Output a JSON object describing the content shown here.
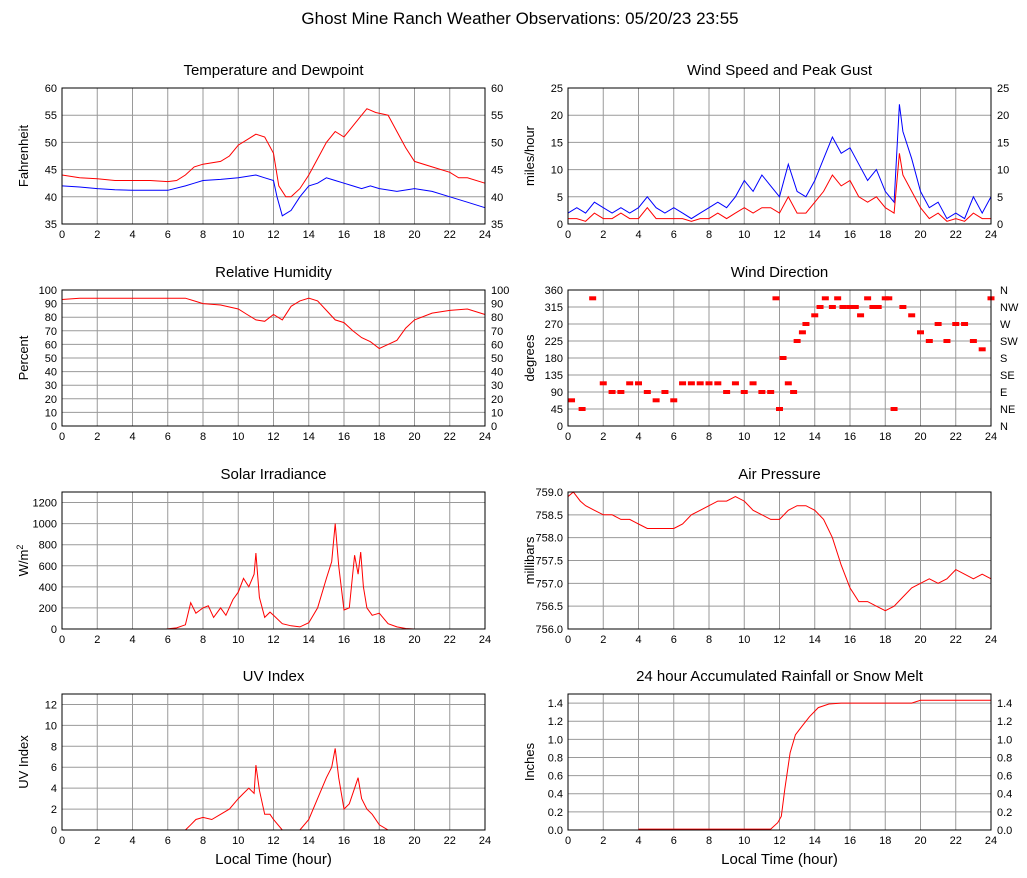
{
  "title": "Ghost Mine Ranch Weather Observations: 05/20/23 23:55",
  "colors": {
    "red": "#ff0000",
    "blue": "#0000ff"
  },
  "chart_data": [
    {
      "type": "line",
      "title": "Temperature and Dewpoint",
      "xlabel": "",
      "ylabel": "Fahrenheit",
      "xlim": [
        0,
        24
      ],
      "ylim": [
        35,
        60
      ],
      "xticks": [
        0,
        2,
        4,
        6,
        8,
        10,
        12,
        14,
        16,
        18,
        20,
        22,
        24
      ],
      "yticks": [
        35,
        40,
        45,
        50,
        55,
        60
      ],
      "right_axis": true,
      "series": [
        {
          "color": "#ff0000",
          "x": [
            0,
            1,
            2,
            3,
            4,
            5,
            6,
            6.5,
            7,
            7.5,
            8,
            9,
            9.5,
            10,
            10.5,
            11,
            11.5,
            12,
            12.3,
            12.7,
            13,
            13.5,
            14,
            14.5,
            15,
            15.5,
            16,
            16.5,
            17,
            17.3,
            17.8,
            18.5,
            19,
            19.5,
            20,
            21,
            22,
            22.5,
            23,
            24
          ],
          "y": [
            44,
            43.5,
            43.3,
            43,
            43,
            43,
            42.8,
            43,
            44,
            45.5,
            46,
            46.5,
            47.5,
            49.5,
            50.5,
            51.5,
            51,
            48,
            42,
            40,
            40,
            41.5,
            44,
            47,
            50,
            52,
            51,
            53,
            55,
            56.2,
            55.5,
            55,
            52,
            49,
            46.5,
            45.5,
            44.5,
            43.5,
            43.5,
            42.5
          ]
        },
        {
          "color": "#0000ff",
          "x": [
            0,
            1,
            2,
            3,
            4,
            5,
            6,
            7,
            7.5,
            8,
            9,
            10,
            11,
            11.5,
            12,
            12.2,
            12.5,
            13,
            13.5,
            14,
            14.5,
            15,
            15.5,
            16,
            16.5,
            17,
            17.5,
            18,
            19,
            20,
            21,
            22,
            23,
            24
          ],
          "y": [
            42,
            41.8,
            41.5,
            41.3,
            41.2,
            41.2,
            41.2,
            42,
            42.5,
            43,
            43.2,
            43.5,
            44,
            43.5,
            43,
            40,
            36.5,
            37.5,
            40,
            42,
            42.5,
            43.5,
            43,
            42.5,
            42,
            41.5,
            42,
            41.5,
            41,
            41.5,
            41,
            40,
            39,
            38
          ]
        }
      ]
    },
    {
      "type": "line",
      "title": "Wind Speed and Peak Gust",
      "xlabel": "",
      "ylabel": "miles/hour",
      "xlim": [
        0,
        24
      ],
      "ylim": [
        0,
        25
      ],
      "xticks": [
        0,
        2,
        4,
        6,
        8,
        10,
        12,
        14,
        16,
        18,
        20,
        22,
        24
      ],
      "yticks": [
        0,
        5,
        10,
        15,
        20,
        25
      ],
      "right_axis": true,
      "series": [
        {
          "color": "#0000ff",
          "x": [
            0,
            0.5,
            1,
            1.5,
            2,
            2.5,
            3,
            3.5,
            4,
            4.5,
            5,
            5.5,
            6,
            6.5,
            7,
            7.5,
            8,
            8.5,
            9,
            9.5,
            10,
            10.5,
            11,
            11.5,
            12,
            12.5,
            13,
            13.5,
            14,
            14.5,
            15,
            15.5,
            16,
            16.5,
            17,
            17.5,
            18,
            18.5,
            18.8,
            19,
            19.5,
            20,
            20.5,
            21,
            21.5,
            22,
            22.5,
            23,
            23.5,
            24
          ],
          "y": [
            2,
            3,
            2,
            4,
            3,
            2,
            3,
            2,
            3,
            5,
            3,
            2,
            3,
            2,
            1,
            2,
            3,
            4,
            3,
            5,
            8,
            6,
            9,
            7,
            5,
            11,
            6,
            5,
            8,
            12,
            16,
            13,
            14,
            11,
            8,
            10,
            6,
            4,
            22,
            17,
            12,
            6,
            3,
            4,
            1,
            2,
            1,
            5,
            2,
            5
          ]
        },
        {
          "color": "#ff0000",
          "x": [
            0,
            0.5,
            1,
            1.5,
            2,
            2.5,
            3,
            3.5,
            4,
            4.5,
            5,
            5.5,
            6,
            6.5,
            7,
            7.5,
            8,
            8.5,
            9,
            9.5,
            10,
            10.5,
            11,
            11.5,
            12,
            12.5,
            13,
            13.5,
            14,
            14.5,
            15,
            15.5,
            16,
            16.5,
            17,
            17.5,
            18,
            18.5,
            18.8,
            19,
            19.5,
            20,
            20.5,
            21,
            21.5,
            22,
            22.5,
            23,
            23.5,
            24
          ],
          "y": [
            1,
            1,
            0.5,
            2,
            1,
            1,
            2,
            1,
            1,
            3,
            1,
            1,
            1,
            1,
            0.5,
            1,
            1,
            2,
            1,
            2,
            3,
            2,
            3,
            3,
            2,
            5,
            2,
            2,
            4,
            6,
            9,
            7,
            8,
            5,
            4,
            5,
            3,
            2,
            13,
            9,
            6,
            3,
            1,
            2,
            0.5,
            1,
            0.5,
            2,
            1,
            1
          ]
        }
      ]
    },
    {
      "type": "line",
      "title": "Relative Humidity",
      "xlabel": "",
      "ylabel": "Percent",
      "xlim": [
        0,
        24
      ],
      "ylim": [
        0,
        100
      ],
      "xticks": [
        0,
        2,
        4,
        6,
        8,
        10,
        12,
        14,
        16,
        18,
        20,
        22,
        24
      ],
      "yticks": [
        0,
        10,
        20,
        30,
        40,
        50,
        60,
        70,
        80,
        90,
        100
      ],
      "right_axis": true,
      "series": [
        {
          "color": "#ff0000",
          "x": [
            0,
            1,
            2,
            3,
            4,
            5,
            6,
            7,
            7.5,
            8,
            9,
            10,
            10.5,
            11,
            11.5,
            12,
            12.5,
            13,
            13.5,
            14,
            14.5,
            15,
            15.5,
            16,
            16.5,
            17,
            17.5,
            18,
            18.5,
            19,
            19.5,
            20,
            21,
            22,
            23,
            24
          ],
          "y": [
            93,
            94,
            94,
            94,
            94,
            94,
            94,
            94,
            92,
            90,
            89,
            86,
            82,
            78,
            77,
            82,
            78,
            88,
            92,
            94,
            92,
            85,
            78,
            76,
            70,
            65,
            62,
            57,
            60,
            63,
            72,
            78,
            83,
            85,
            86,
            82
          ]
        }
      ]
    },
    {
      "type": "scatter",
      "title": "Wind Direction",
      "xlabel": "",
      "ylabel": "degrees",
      "xlim": [
        0,
        24
      ],
      "ylim": [
        0,
        360
      ],
      "xticks": [
        0,
        2,
        4,
        6,
        8,
        10,
        12,
        14,
        16,
        18,
        20,
        22,
        24
      ],
      "yticks": [
        0,
        45,
        90,
        135,
        180,
        225,
        270,
        315,
        360
      ],
      "right_labels": [
        "N",
        "NE",
        "E",
        "SE",
        "S",
        "SW",
        "W",
        "NW",
        "N"
      ],
      "series": [
        {
          "color": "#ff0000",
          "x": [
            0.2,
            0.8,
            1.4,
            2.0,
            2.5,
            3.0,
            3.5,
            4.0,
            4.5,
            5.0,
            5.5,
            6.0,
            6.5,
            7.0,
            7.5,
            8.0,
            8.5,
            9.0,
            9.5,
            10.0,
            10.5,
            11.0,
            11.5,
            11.8,
            12.0,
            12.2,
            12.5,
            12.8,
            13.0,
            13.3,
            13.5,
            14.0,
            14.3,
            14.6,
            15.0,
            15.3,
            15.6,
            16.0,
            16.3,
            16.6,
            17.0,
            17.3,
            17.6,
            18.0,
            18.2,
            18.5,
            19.0,
            19.5,
            20.0,
            20.5,
            21.0,
            21.5,
            22.0,
            22.5,
            23.0,
            23.5,
            24.0
          ],
          "y": [
            68,
            45,
            338,
            113,
            90,
            90,
            113,
            113,
            90,
            68,
            90,
            68,
            113,
            113,
            113,
            113,
            113,
            90,
            113,
            90,
            113,
            90,
            90,
            338,
            45,
            180,
            113,
            90,
            225,
            248,
            270,
            293,
            315,
            338,
            315,
            338,
            315,
            315,
            315,
            293,
            338,
            315,
            315,
            338,
            338,
            45,
            315,
            293,
            248,
            225,
            270,
            225,
            270,
            270,
            225,
            203,
            338
          ]
        }
      ]
    },
    {
      "type": "line",
      "title": "Solar Irradiance",
      "xlabel": "",
      "ylabel": "W/m",
      "ylabel_superscript": "2",
      "xlim": [
        0,
        24
      ],
      "ylim": [
        0,
        1300
      ],
      "xticks": [
        0,
        2,
        4,
        6,
        8,
        10,
        12,
        14,
        16,
        18,
        20,
        22,
        24
      ],
      "yticks": [
        0,
        200,
        400,
        600,
        800,
        1000,
        1200
      ],
      "right_axis": false,
      "series": [
        {
          "color": "#ff0000",
          "x": [
            0,
            5.9,
            6.5,
            7.0,
            7.3,
            7.6,
            8.0,
            8.3,
            8.6,
            9.0,
            9.3,
            9.7,
            10.0,
            10.3,
            10.6,
            10.9,
            11.0,
            11.2,
            11.5,
            11.8,
            12.0,
            12.5,
            13.0,
            13.5,
            14.0,
            14.5,
            15.0,
            15.3,
            15.5,
            15.7,
            16.0,
            16.3,
            16.6,
            16.8,
            16.95,
            17.1,
            17.3,
            17.6,
            18.0,
            18.5,
            19.0,
            19.5,
            20.0,
            24.0
          ],
          "y": [
            0,
            0,
            10,
            40,
            250,
            150,
            200,
            220,
            110,
            200,
            130,
            280,
            350,
            480,
            400,
            520,
            720,
            300,
            110,
            160,
            130,
            50,
            30,
            20,
            60,
            200,
            480,
            640,
            1000,
            600,
            180,
            200,
            700,
            520,
            730,
            400,
            200,
            130,
            150,
            50,
            20,
            5,
            0,
            0
          ]
        }
      ]
    },
    {
      "type": "line",
      "title": "Air Pressure",
      "xlabel": "",
      "ylabel": "millibars",
      "xlim": [
        0,
        24
      ],
      "ylim": [
        756.0,
        759.0
      ],
      "xticks": [
        0,
        2,
        4,
        6,
        8,
        10,
        12,
        14,
        16,
        18,
        20,
        22,
        24
      ],
      "yticks": [
        756.0,
        756.5,
        757.0,
        757.5,
        758.0,
        758.5,
        759.0
      ],
      "right_axis": false,
      "series": [
        {
          "color": "#ff0000",
          "x": [
            0,
            0.3,
            0.7,
            1,
            1.5,
            2,
            2.5,
            3,
            3.5,
            4,
            4.5,
            5,
            5.5,
            6,
            6.5,
            7,
            7.5,
            8,
            8.5,
            9,
            9.5,
            10,
            10.5,
            11,
            11.5,
            12,
            12.5,
            13,
            13.5,
            14,
            14.5,
            15,
            15.5,
            16,
            16.5,
            17,
            17.5,
            18,
            18.5,
            19,
            19.5,
            20,
            20.5,
            21,
            21.5,
            22,
            22.5,
            23,
            23.5,
            24
          ],
          "y": [
            758.9,
            759.0,
            758.8,
            758.7,
            758.6,
            758.5,
            758.5,
            758.4,
            758.4,
            758.3,
            758.2,
            758.2,
            758.2,
            758.2,
            758.3,
            758.5,
            758.6,
            758.7,
            758.8,
            758.8,
            758.9,
            758.8,
            758.6,
            758.5,
            758.4,
            758.4,
            758.6,
            758.7,
            758.7,
            758.6,
            758.4,
            758.0,
            757.4,
            756.9,
            756.6,
            756.6,
            756.5,
            756.4,
            756.5,
            756.7,
            756.9,
            757.0,
            757.1,
            757.0,
            757.1,
            757.3,
            757.2,
            757.1,
            757.2,
            757.1
          ]
        }
      ]
    },
    {
      "type": "line",
      "title": "UV Index",
      "xlabel": "Local Time (hour)",
      "ylabel": "UV Index",
      "xlim": [
        0,
        24
      ],
      "ylim": [
        0,
        13
      ],
      "xticks": [
        0,
        2,
        4,
        6,
        8,
        10,
        12,
        14,
        16,
        18,
        20,
        22,
        24
      ],
      "yticks": [
        0,
        2,
        4,
        6,
        8,
        10,
        12
      ],
      "right_axis": false,
      "series": [
        {
          "color": "#ff0000",
          "x": [
            0,
            7.0,
            7.3,
            7.6,
            8.0,
            8.5,
            9.0,
            9.5,
            10.0,
            10.3,
            10.6,
            10.9,
            11.0,
            11.2,
            11.5,
            11.8,
            12.0,
            12.5,
            13.5,
            14.0,
            14.5,
            15.0,
            15.3,
            15.5,
            15.7,
            16.0,
            16.3,
            16.6,
            16.8,
            17.0,
            17.3,
            17.6,
            18.0,
            18.5,
            24.0
          ],
          "y": [
            0,
            0,
            0.5,
            1.0,
            1.2,
            1.0,
            1.5,
            2.0,
            3.0,
            3.5,
            4.0,
            3.5,
            6.2,
            3.8,
            1.5,
            1.5,
            1.0,
            0,
            0,
            1.0,
            3.0,
            5.0,
            6.0,
            7.8,
            5.0,
            2.0,
            2.5,
            4.0,
            5.0,
            3.0,
            2.0,
            1.5,
            0.5,
            0,
            0
          ]
        }
      ]
    },
    {
      "type": "line",
      "title": "24 hour Accumulated Rainfall or Snow Melt",
      "xlabel": "Local Time (hour)",
      "ylabel": "Inches",
      "xlim": [
        0,
        24
      ],
      "ylim": [
        0,
        1.5
      ],
      "xticks": [
        0,
        2,
        4,
        6,
        8,
        10,
        12,
        14,
        16,
        18,
        20,
        22,
        24
      ],
      "yticks": [
        0.0,
        0.2,
        0.4,
        0.6,
        0.8,
        1.0,
        1.2,
        1.4
      ],
      "right_axis": true,
      "series": [
        {
          "color": "#ff0000",
          "x": [
            4.0,
            11.5,
            11.9,
            12.1,
            12.3,
            12.6,
            12.9,
            13.3,
            13.7,
            14.2,
            14.8,
            15.5,
            16.5,
            17.5,
            18.5,
            19.5,
            20.0,
            22.0,
            24.0
          ],
          "y": [
            0.01,
            0.01,
            0.08,
            0.15,
            0.45,
            0.85,
            1.05,
            1.15,
            1.25,
            1.35,
            1.39,
            1.4,
            1.4,
            1.4,
            1.4,
            1.4,
            1.43,
            1.43,
            1.43
          ]
        }
      ]
    }
  ]
}
